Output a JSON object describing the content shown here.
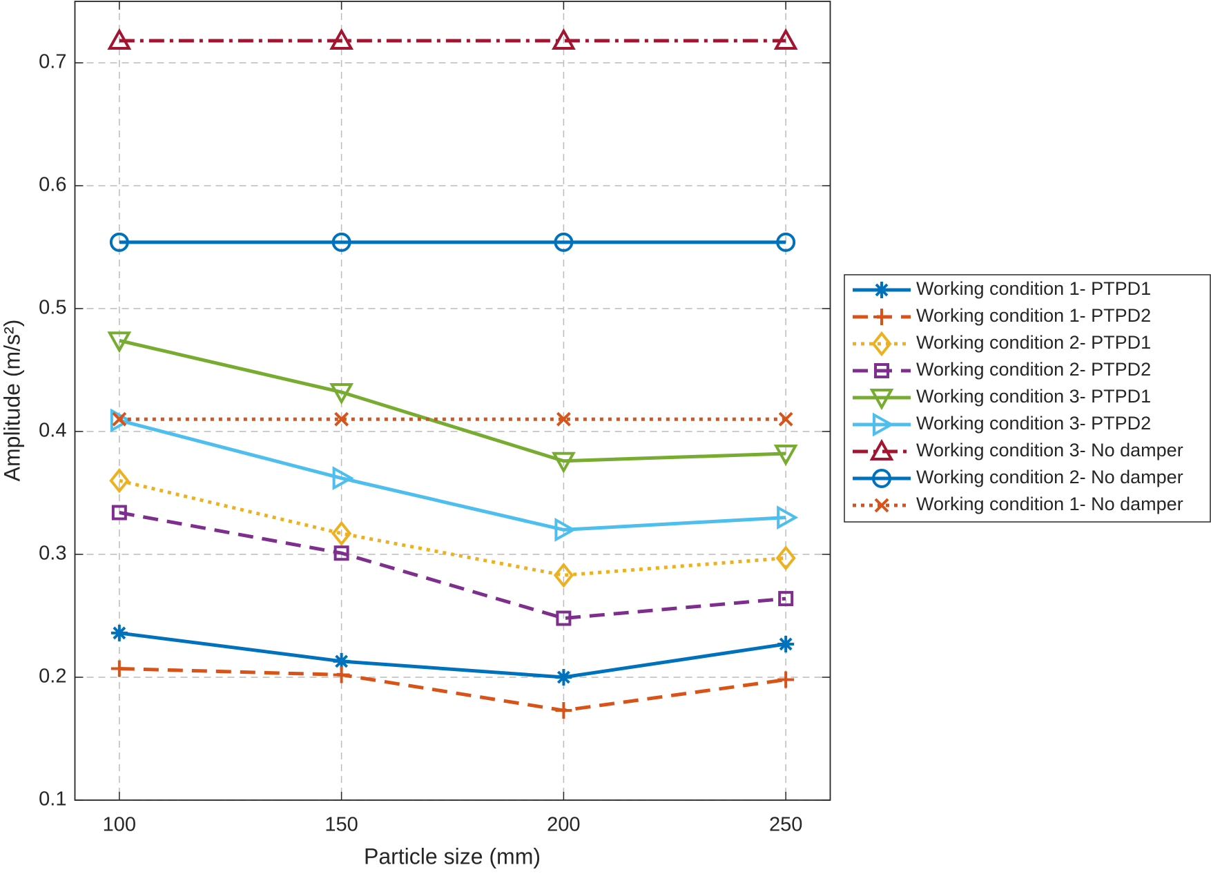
{
  "chart_data": {
    "type": "line",
    "xlabel": "Particle size (mm)",
    "ylabel": "Amplitude (m/s²)",
    "x": [
      100,
      150,
      200,
      250
    ],
    "xlim": [
      90,
      260
    ],
    "xticks": [
      100,
      150,
      200,
      250
    ],
    "ylim": [
      0.1,
      0.75
    ],
    "yticks": [
      0.1,
      0.2,
      0.3,
      0.4,
      0.5,
      0.6,
      0.7
    ],
    "grid": true,
    "legend": "right",
    "series": [
      {
        "name": "Working condition 1- PTPD1",
        "color": "#0072BD",
        "marker": "asterisk",
        "dash": "solid",
        "values": [
          0.236,
          0.213,
          0.2,
          0.227
        ]
      },
      {
        "name": "Working condition 1- PTPD2",
        "color": "#D95319",
        "marker": "plus",
        "dash": "dashed",
        "values": [
          0.207,
          0.202,
          0.173,
          0.198
        ]
      },
      {
        "name": "Working condition 2- PTPD1",
        "color": "#EDB120",
        "marker": "diamond",
        "dash": "dotted",
        "values": [
          0.36,
          0.317,
          0.283,
          0.297
        ]
      },
      {
        "name": "Working condition 2- PTPD2",
        "color": "#7E2F8E",
        "marker": "square",
        "dash": "dashed",
        "values": [
          0.334,
          0.301,
          0.248,
          0.264
        ]
      },
      {
        "name": "Working condition 3- PTPD1",
        "color": "#77AC30",
        "marker": "triangle-down",
        "dash": "solid",
        "values": [
          0.474,
          0.432,
          0.376,
          0.382
        ]
      },
      {
        "name": "Working condition 3- PTPD2",
        "color": "#4DBEEE",
        "marker": "triangle-right",
        "dash": "solid",
        "values": [
          0.409,
          0.362,
          0.32,
          0.33
        ]
      },
      {
        "name": "Working condition 3- No damper",
        "color": "#A2142F",
        "marker": "triangle-up",
        "dash": "dashdot",
        "values": [
          0.718,
          0.718,
          0.718,
          0.718
        ]
      },
      {
        "name": "Working condition 2- No damper",
        "color": "#0072BD",
        "marker": "circle",
        "dash": "solid",
        "values": [
          0.554,
          0.554,
          0.554,
          0.554
        ]
      },
      {
        "name": "Working condition 1- No damper",
        "color": "#D95319",
        "marker": "x",
        "dash": "dotted",
        "values": [
          0.41,
          0.41,
          0.41,
          0.41
        ]
      }
    ]
  }
}
